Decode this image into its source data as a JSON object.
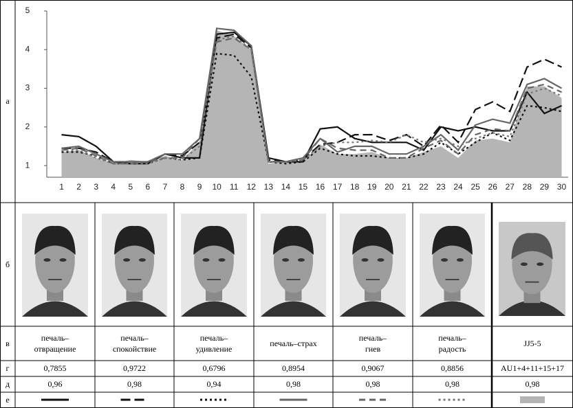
{
  "chart_data": {
    "type": "line",
    "categories": [
      "1",
      "2",
      "3",
      "4",
      "5",
      "6",
      "7",
      "8",
      "9",
      "10",
      "11",
      "12",
      "13",
      "14",
      "15",
      "16",
      "17",
      "18",
      "19",
      "20",
      "21",
      "22",
      "23",
      "24",
      "25",
      "26",
      "27",
      "28",
      "29",
      "30"
    ],
    "ylim": [
      0.7,
      5
    ],
    "yticks": [
      1,
      2,
      3,
      4,
      5
    ],
    "series": [
      {
        "color": "#111111",
        "style": "solid",
        "values": [
          1.8,
          1.75,
          1.5,
          1.1,
          1.05,
          1.05,
          1.3,
          1.2,
          1.2,
          4.4,
          4.45,
          4.1,
          1.2,
          1.1,
          1.1,
          1.95,
          2.0,
          1.7,
          1.6,
          1.6,
          1.6,
          1.4,
          2.0,
          1.9,
          2.0,
          1.9,
          1.9,
          2.9,
          2.35,
          2.55
        ]
      },
      {
        "color": "#111111",
        "style": "long-dash",
        "values": [
          1.45,
          1.45,
          1.35,
          1.1,
          1.05,
          1.1,
          1.3,
          1.25,
          1.6,
          4.3,
          4.4,
          4.05,
          1.15,
          1.1,
          1.15,
          1.55,
          1.6,
          1.8,
          1.8,
          1.65,
          1.8,
          1.5,
          2.05,
          1.6,
          2.45,
          2.65,
          2.4,
          3.55,
          3.75,
          3.55
        ]
      },
      {
        "color": "#111111",
        "style": "dot",
        "values": [
          1.35,
          1.35,
          1.25,
          1.05,
          1.05,
          1.05,
          1.2,
          1.15,
          1.2,
          3.9,
          3.85,
          3.3,
          1.1,
          1.05,
          1.1,
          1.45,
          1.3,
          1.25,
          1.25,
          1.2,
          1.2,
          1.3,
          1.6,
          1.3,
          1.6,
          1.85,
          1.65,
          2.55,
          2.5,
          2.4
        ]
      },
      {
        "color": "#666666",
        "style": "solid",
        "values": [
          1.45,
          1.5,
          1.3,
          1.1,
          1.1,
          1.1,
          1.3,
          1.3,
          1.7,
          4.55,
          4.5,
          4.1,
          1.1,
          1.1,
          1.2,
          1.7,
          1.35,
          1.5,
          1.5,
          1.3,
          1.3,
          1.5,
          1.8,
          1.4,
          2.05,
          2.2,
          2.1,
          3.1,
          3.25,
          3.0
        ]
      },
      {
        "color": "#666666",
        "style": "dash",
        "values": [
          1.4,
          1.45,
          1.25,
          1.05,
          1.05,
          1.1,
          1.2,
          1.2,
          1.7,
          4.2,
          4.3,
          4.0,
          1.1,
          1.1,
          1.15,
          1.7,
          1.45,
          1.4,
          1.4,
          1.2,
          1.2,
          1.45,
          1.65,
          1.3,
          1.8,
          1.95,
          1.9,
          3.0,
          3.1,
          2.9
        ]
      },
      {
        "color": "#777777",
        "style": "dot",
        "values": [
          1.4,
          1.4,
          1.2,
          1.05,
          1.05,
          1.05,
          1.2,
          1.15,
          1.5,
          4.25,
          4.35,
          4.0,
          1.1,
          1.1,
          1.15,
          1.5,
          1.6,
          1.6,
          1.65,
          1.6,
          1.8,
          1.6,
          1.7,
          1.5,
          1.7,
          1.85,
          1.75,
          2.85,
          3.0,
          2.8
        ]
      },
      {
        "color": "#b5b5b5",
        "style": "area",
        "values": [
          1.35,
          1.4,
          1.2,
          1.05,
          1.15,
          1.1,
          1.25,
          1.15,
          1.6,
          4.5,
          4.35,
          4.0,
          1.05,
          1.1,
          1.1,
          1.55,
          1.3,
          1.3,
          1.35,
          1.2,
          1.2,
          1.35,
          1.5,
          1.2,
          1.65,
          1.7,
          1.6,
          3.05,
          3.05,
          2.75
        ]
      }
    ]
  },
  "table": {
    "row_labels": [
      "а",
      "б",
      "в",
      "г",
      "д",
      "е"
    ],
    "columns": [
      {
        "label": "печаль–\nотвращение",
        "r": "0,7855",
        "d": "0,96"
      },
      {
        "label": "печаль–\nспокойствие",
        "r": "0,9722",
        "d": "0,98"
      },
      {
        "label": "печаль–\nудивление",
        "r": "0,6796",
        "d": "0,94"
      },
      {
        "label": "печаль–страх",
        "r": "0,8954",
        "d": "0,98"
      },
      {
        "label": "печаль–\nгнев",
        "r": "0,9067",
        "d": "0,98"
      },
      {
        "label": "печаль–\nрадость",
        "r": "0,8856",
        "d": "0,98"
      },
      {
        "label": "JJ5-5",
        "r": "AU1+4+11+15+17",
        "d": "0,98"
      }
    ]
  }
}
